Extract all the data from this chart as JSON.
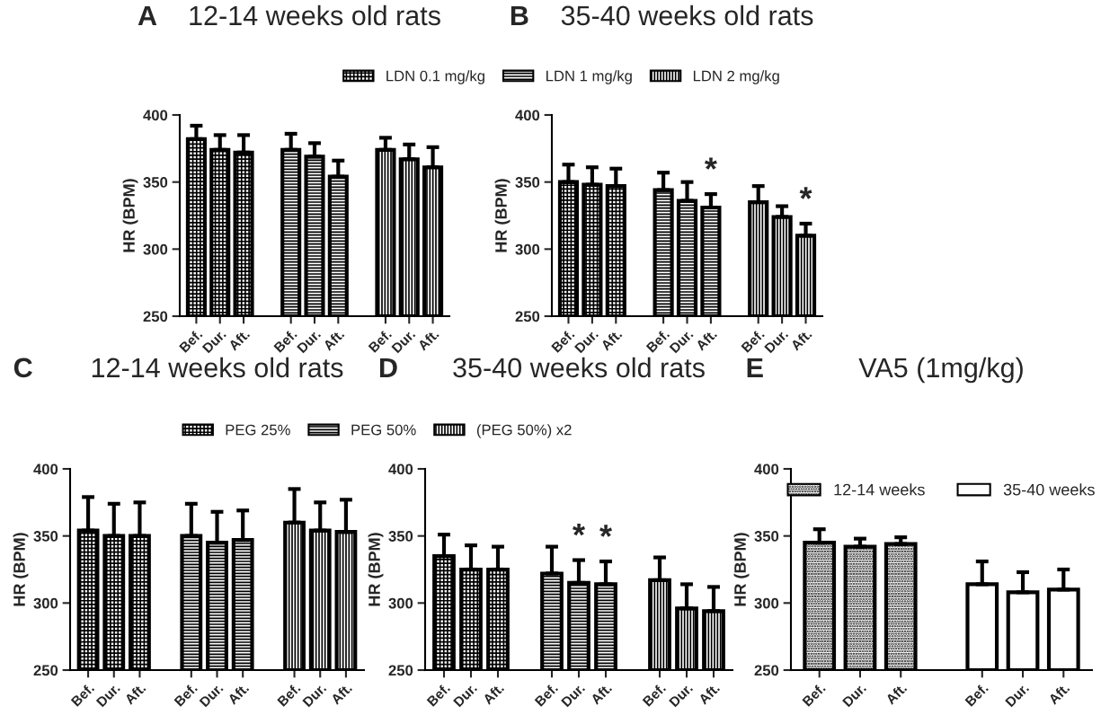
{
  "chart_data": [
    {
      "type": "bar",
      "title": "12-14 weeks old rats",
      "ylabel": "HR (BPM)",
      "categories": [
        "Bef.",
        "Dur.",
        "Aft.",
        null,
        "Bef.",
        "Dur.",
        "Aft.",
        null,
        "Bef.",
        "Dur.",
        "Aft."
      ],
      "ylim": [
        250,
        400
      ],
      "yticks": [
        250,
        300,
        350,
        400
      ],
      "legend": "top",
      "annotations": [
        "A"
      ],
      "series": [
        {
          "name": "LDN 0.1 mg/kg",
          "color": "#000000",
          "values": [
            382,
            374,
            372,
            null,
            null,
            null,
            null,
            null,
            null,
            null,
            null
          ],
          "errors": [
            [
              382,
              392
            ],
            [
              374,
              385
            ],
            [
              372,
              385
            ],
            null,
            null,
            null,
            null,
            null,
            null,
            null,
            null
          ]
        },
        {
          "name": "LDN 1 mg/kg",
          "color": "#000000",
          "values": [
            null,
            null,
            null,
            null,
            374,
            369,
            354,
            null,
            null,
            null,
            null
          ],
          "errors": [
            null,
            null,
            null,
            null,
            [
              374,
              386
            ],
            [
              369,
              379
            ],
            [
              354,
              366
            ],
            null,
            null,
            null,
            null
          ]
        },
        {
          "name": "LDN 2 mg/kg",
          "color": "#000000",
          "values": [
            null,
            null,
            null,
            null,
            null,
            null,
            null,
            null,
            374,
            367,
            361
          ],
          "errors": [
            null,
            null,
            null,
            null,
            null,
            null,
            null,
            null,
            [
              374,
              383
            ],
            [
              367,
              378
            ],
            [
              361,
              376
            ]
          ]
        }
      ]
    },
    {
      "type": "bar",
      "title": "35-40 weeks old rats",
      "ylabel": "HR (BPM)",
      "categories": [
        "Bef.",
        "Dur.",
        "Aft.",
        null,
        "Bef.",
        "Dur.",
        "Aft.",
        null,
        "Bef.",
        "Dur.",
        "Aft."
      ],
      "ylim": [
        250,
        400
      ],
      "yticks": [
        250,
        300,
        350,
        400
      ],
      "annotations": [
        "B",
        "*",
        "*"
      ],
      "series": [
        {
          "color": "#000000",
          "values": [
            350,
            348,
            347,
            null,
            null,
            null,
            null,
            null,
            null,
            null,
            null
          ],
          "errors": [
            [
              350,
              363
            ],
            [
              348,
              361
            ],
            [
              347,
              360
            ],
            null,
            null,
            null,
            null,
            null,
            null,
            null,
            null
          ]
        },
        {
          "color": "#000000",
          "values": [
            null,
            null,
            null,
            null,
            344,
            336,
            331,
            null,
            null,
            null,
            null
          ],
          "errors": [
            null,
            null,
            null,
            null,
            [
              344,
              357
            ],
            [
              336,
              350
            ],
            [
              331,
              341
            ],
            null,
            null,
            null,
            null
          ]
        },
        {
          "color": "#000000",
          "values": [
            null,
            null,
            null,
            null,
            null,
            null,
            null,
            null,
            335,
            324,
            310
          ],
          "errors": [
            null,
            null,
            null,
            null,
            null,
            null,
            null,
            null,
            [
              335,
              347
            ],
            [
              324,
              332
            ],
            [
              310,
              319
            ]
          ]
        }
      ]
    },
    {
      "type": "bar",
      "title": "12-14 weeks old rats",
      "ylabel": "HR (BPM)",
      "categories": [
        "Bef.",
        "Dur.",
        "Aft.",
        null,
        "Bef.",
        "Dur.",
        "Aft.",
        null,
        "Bef.",
        "Dur.",
        "Aft."
      ],
      "ylim": [
        250,
        400
      ],
      "yticks": [
        250,
        300,
        350,
        400
      ],
      "legend": "top",
      "annotations": [
        "C"
      ],
      "series": [
        {
          "name": "PEG 25%",
          "color": "#000000",
          "values": [
            354,
            350,
            350,
            null,
            null,
            null,
            null,
            null,
            null,
            null,
            null
          ],
          "errors": [
            [
              354,
              379
            ],
            [
              350,
              374
            ],
            [
              350,
              375
            ],
            null,
            null,
            null,
            null,
            null,
            null,
            null,
            null
          ]
        },
        {
          "name": "PEG 50%",
          "color": "#000000",
          "values": [
            null,
            null,
            null,
            null,
            350,
            345,
            347,
            null,
            null,
            null,
            null
          ],
          "errors": [
            null,
            null,
            null,
            null,
            [
              350,
              374
            ],
            [
              345,
              368
            ],
            [
              347,
              369
            ],
            null,
            null,
            null,
            null
          ]
        },
        {
          "name": "(PEG 50%) x2",
          "color": "#000000",
          "values": [
            null,
            null,
            null,
            null,
            null,
            null,
            null,
            null,
            360,
            354,
            353
          ],
          "errors": [
            null,
            null,
            null,
            null,
            null,
            null,
            null,
            null,
            [
              360,
              385
            ],
            [
              354,
              375
            ],
            [
              353,
              377
            ]
          ]
        }
      ]
    },
    {
      "type": "bar",
      "title": "35-40 weeks old rats",
      "ylabel": "HR (BPM)",
      "categories": [
        "Bef.",
        "Dur.",
        "Aft.",
        null,
        "Bef.",
        "Dur.",
        "Aft.",
        null,
        "Bef.",
        "Dur.",
        "Aft."
      ],
      "ylim": [
        250,
        400
      ],
      "yticks": [
        250,
        300,
        350,
        400
      ],
      "annotations": [
        "D",
        "*",
        "*"
      ],
      "series": [
        {
          "color": "#000000",
          "values": [
            335,
            325,
            325,
            null,
            null,
            null,
            null,
            null,
            null,
            null,
            null
          ],
          "errors": [
            [
              335,
              351
            ],
            [
              325,
              343
            ],
            [
              325,
              342
            ],
            null,
            null,
            null,
            null,
            null,
            null,
            null,
            null
          ]
        },
        {
          "color": "#000000",
          "values": [
            null,
            null,
            null,
            null,
            322,
            315,
            314,
            null,
            null,
            null,
            null
          ],
          "errors": [
            null,
            null,
            null,
            null,
            [
              322,
              342
            ],
            [
              315,
              332
            ],
            [
              314,
              331
            ],
            null,
            null,
            null,
            null
          ]
        },
        {
          "color": "#000000",
          "values": [
            null,
            null,
            null,
            null,
            null,
            null,
            null,
            null,
            317,
            296,
            294
          ],
          "errors": [
            null,
            null,
            null,
            null,
            null,
            null,
            null,
            null,
            [
              317,
              334
            ],
            [
              296,
              314
            ],
            [
              294,
              312
            ]
          ]
        }
      ]
    },
    {
      "type": "bar",
      "title": "VA5 (1mg/kg)",
      "ylabel": "HR (BPM)",
      "categories": [
        "Bef.",
        "Dur.",
        "Aft.",
        null,
        "Bef.",
        "Dur.",
        "Aft."
      ],
      "ylim": [
        250,
        400
      ],
      "yticks": [
        250,
        300,
        350,
        400
      ],
      "legend": "top",
      "annotations": [
        "E"
      ],
      "series": [
        {
          "name": "12-14 weeks",
          "color": "#000000",
          "values": [
            345,
            342,
            344,
            null,
            null,
            null,
            null
          ],
          "errors": [
            [
              345,
              355
            ],
            [
              342,
              348
            ],
            [
              344,
              349
            ],
            null,
            null,
            null,
            null
          ]
        },
        {
          "name": "35-40 weeks",
          "color": "#ffffff",
          "values": [
            null,
            null,
            null,
            null,
            314,
            308,
            310
          ],
          "errors": [
            null,
            null,
            null,
            null,
            [
              314,
              331
            ],
            [
              308,
              323
            ],
            [
              310,
              325
            ]
          ]
        }
      ]
    }
  ]
}
